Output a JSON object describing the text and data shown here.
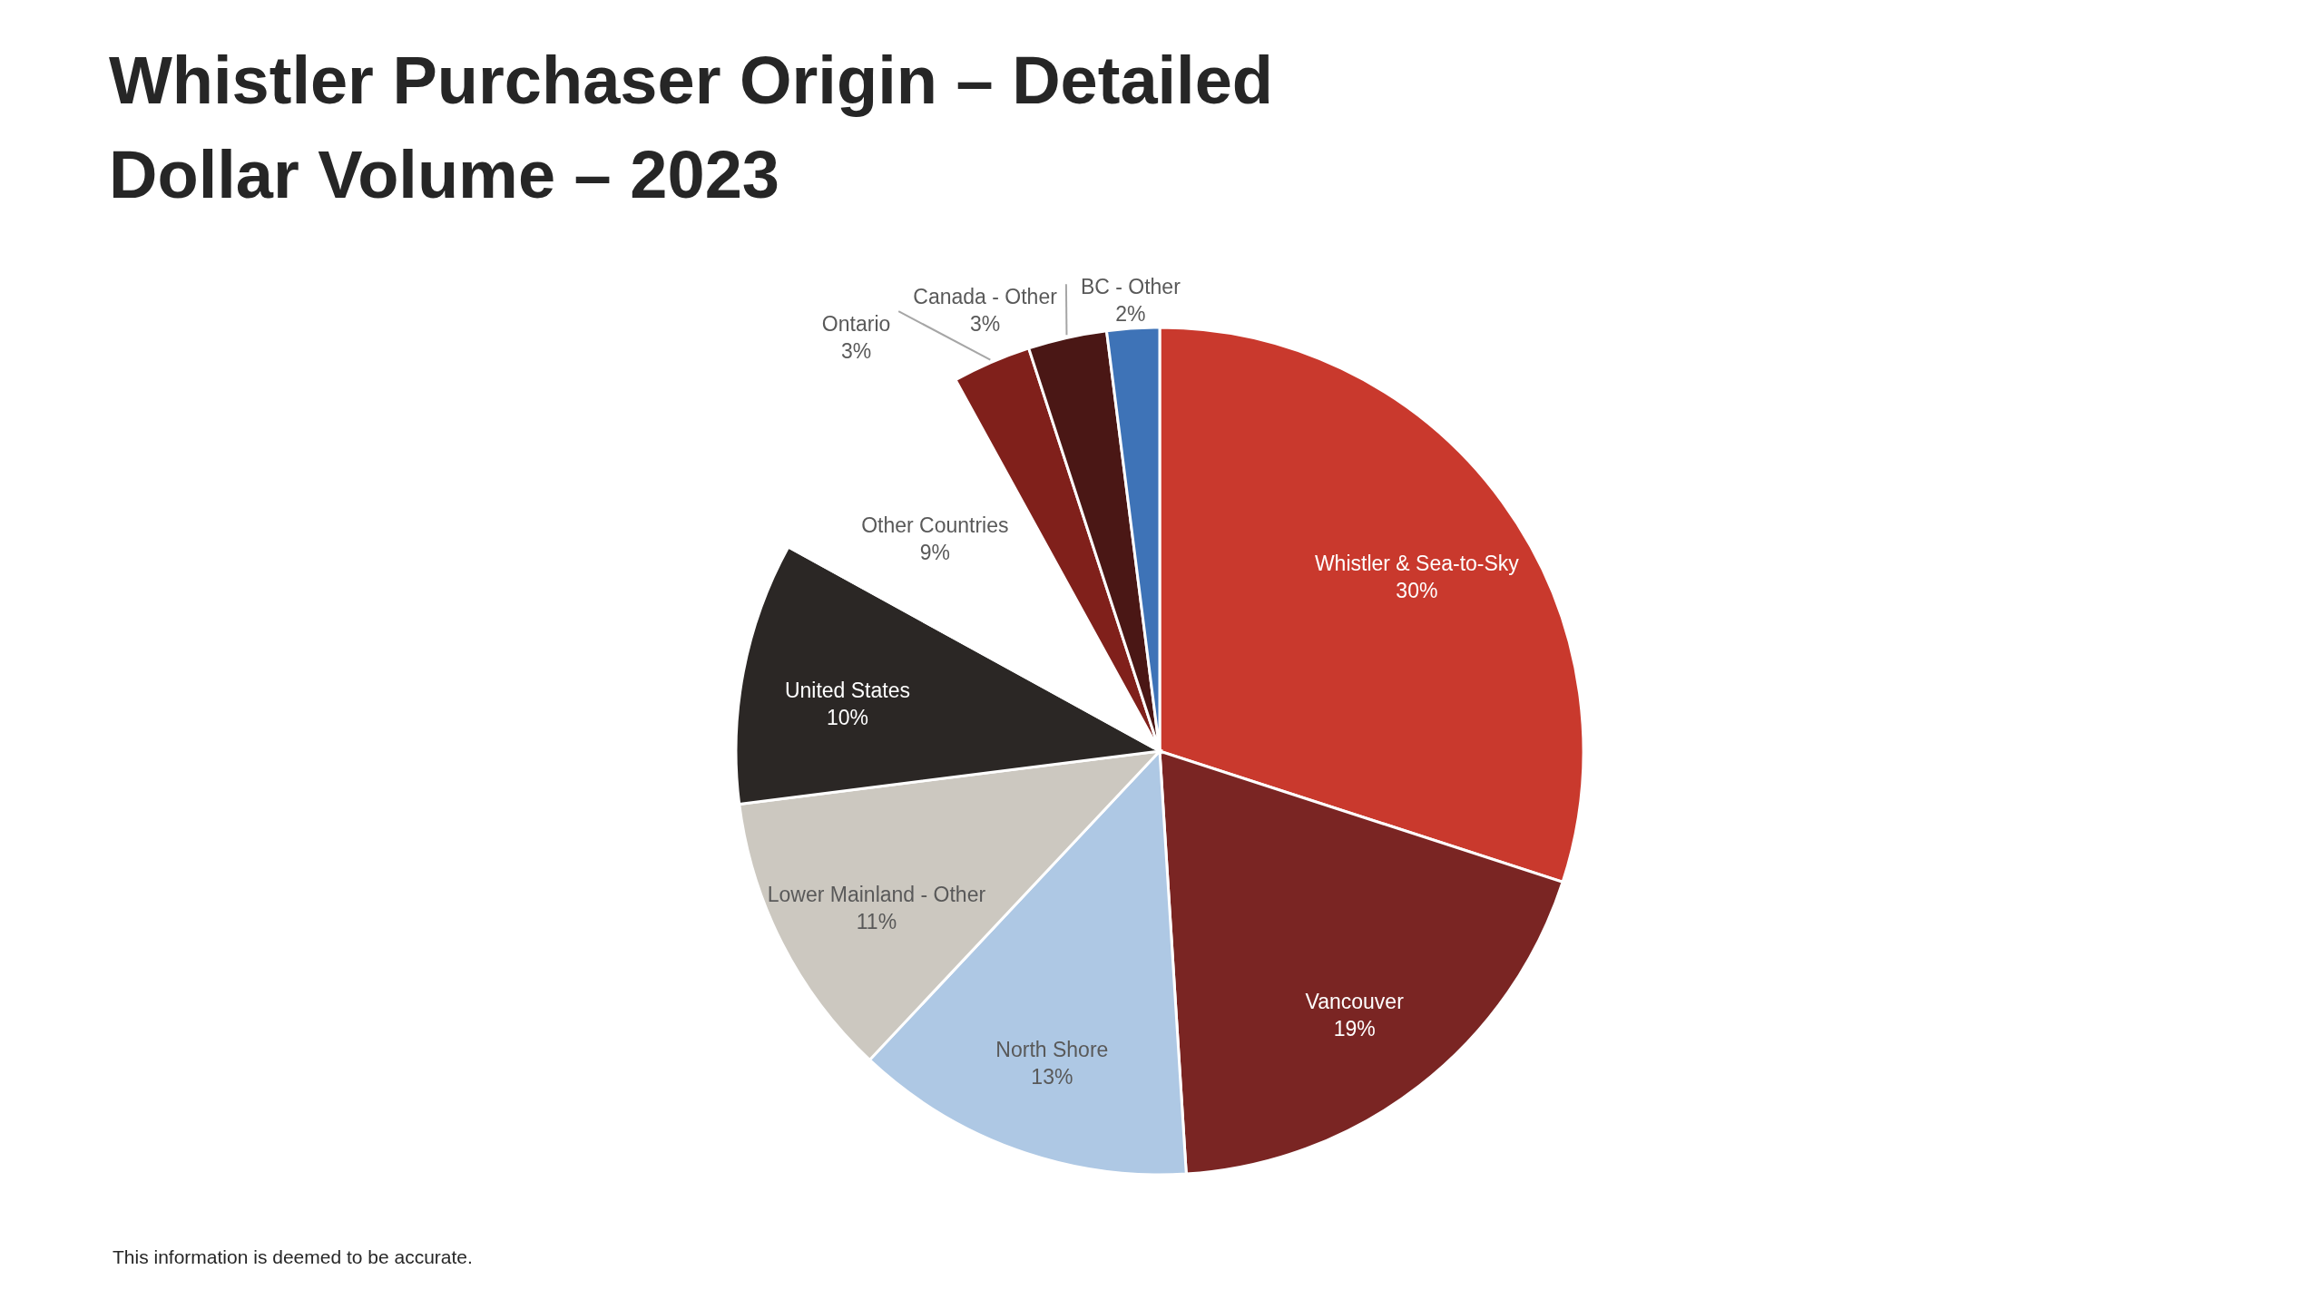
{
  "chart_data": {
    "type": "pie",
    "title": "Whistler Purchaser Origin – Detailed Dollar Volume – 2023",
    "categories": [
      "Whistler & Sea-to-Sky",
      "Vancouver",
      "North Shore",
      "Lower Mainland - Other",
      "United States",
      "Other Countries",
      "Ontario",
      "Canada - Other",
      "BC - Other"
    ],
    "values": [
      30,
      19,
      13,
      11,
      10,
      9,
      3,
      3,
      2
    ],
    "value_labels": [
      "30%",
      "19%",
      "13%",
      "11%",
      "10%",
      "9%",
      "3%",
      "3%",
      "2%"
    ],
    "colors": [
      "#c9392d",
      "#7a2523",
      "#aec8e4",
      "#ccc8c0",
      "#2b2725",
      "#ffffff",
      "#80201b",
      "#4a1715",
      "#3e73b7"
    ],
    "annotations": [
      "This information is deemed to be accurate."
    ]
  }
}
